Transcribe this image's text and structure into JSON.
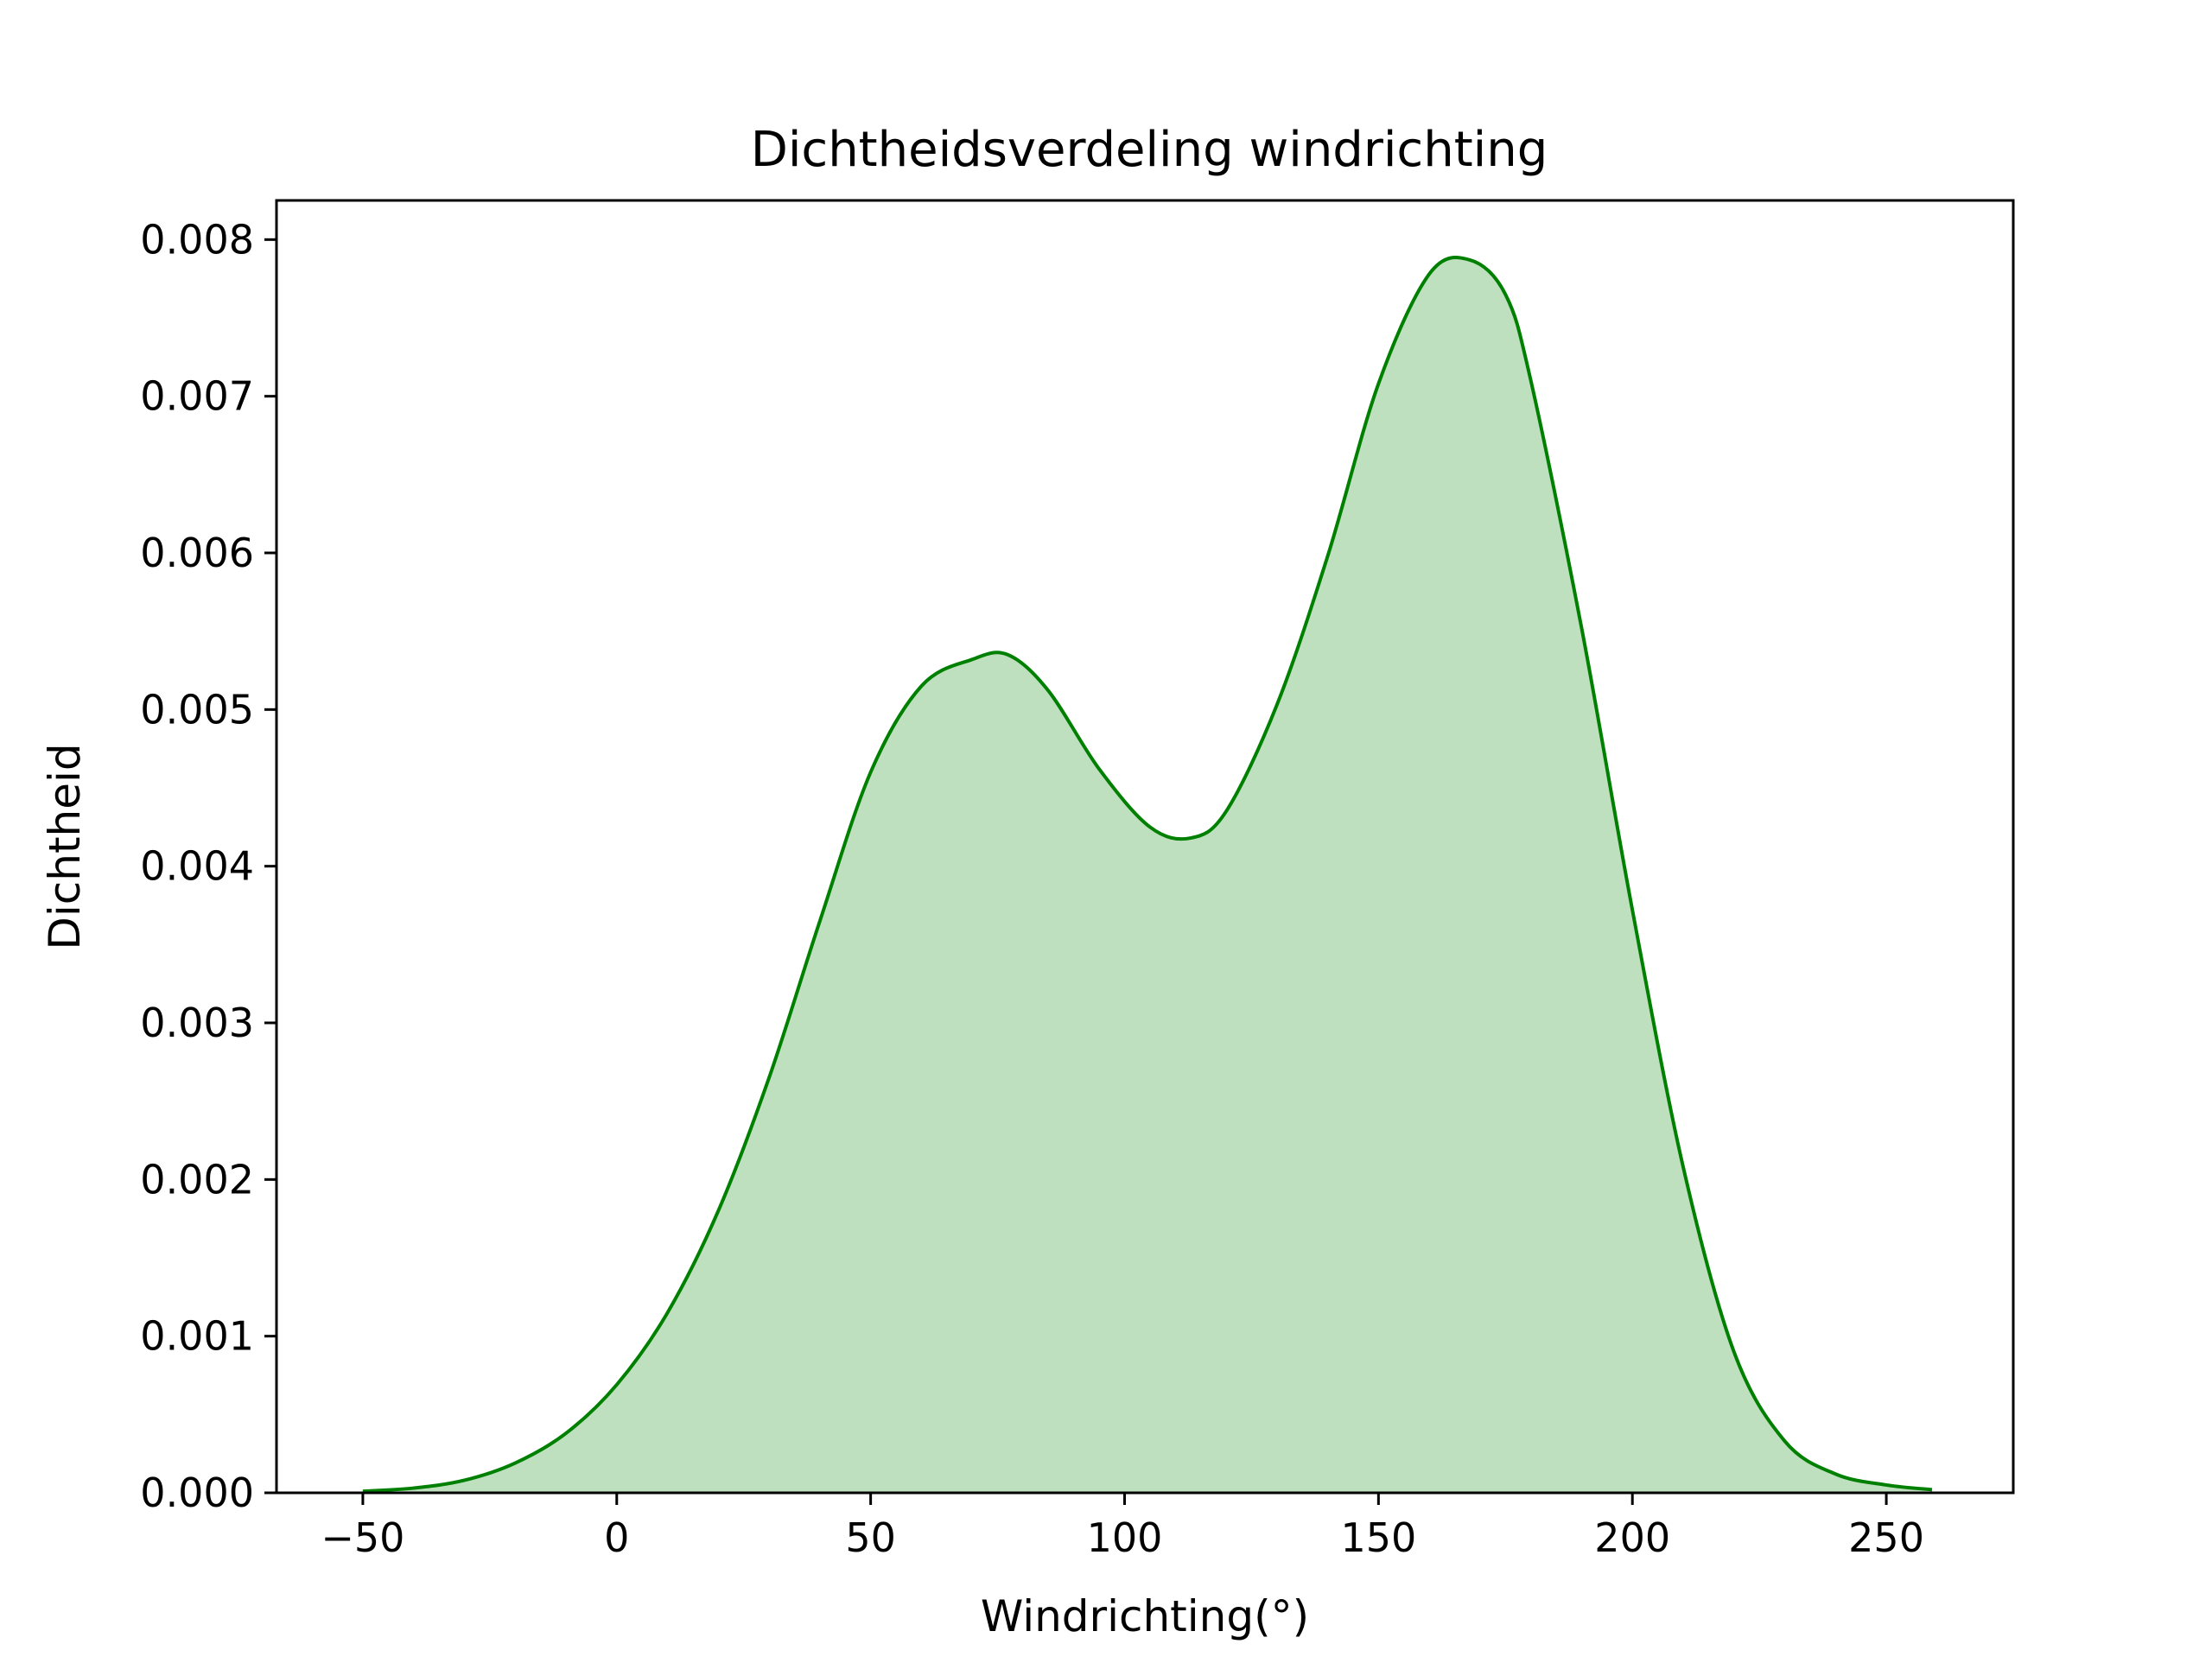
{
  "chart_data": {
    "type": "area",
    "title": "Dichtheidsverdeling windrichting",
    "xlabel": "Windrichting(°)",
    "ylabel": "Dichtheid",
    "xlim": [
      -67,
      275
    ],
    "ylim": [
      0,
      0.00825
    ],
    "xticks": [
      -50,
      0,
      50,
      100,
      150,
      200,
      250
    ],
    "xtick_labels": [
      "−50",
      "0",
      "50",
      "100",
      "150",
      "200",
      "250"
    ],
    "yticks": [
      0,
      0.001,
      0.002,
      0.003,
      0.004,
      0.005,
      0.006,
      0.007,
      0.008
    ],
    "ytick_labels": [
      "0.000",
      "0.001",
      "0.002",
      "0.003",
      "0.004",
      "0.005",
      "0.006",
      "0.007",
      "0.008"
    ],
    "grid": false,
    "legend": "none",
    "line_color": "#008000",
    "fill_color": "#bfe0bf",
    "series": [
      {
        "x": [
          -50,
          -40,
          -30,
          -20,
          -10,
          0,
          10,
          20,
          30,
          40,
          50,
          60,
          70,
          77,
          85,
          95,
          105,
          113,
          120,
          130,
          140,
          150,
          160,
          168,
          175,
          180,
          190,
          200,
          210,
          220,
          230,
          240,
          250,
          259
        ],
        "y": [
          1e-05,
          3e-05,
          8e-05,
          0.00019,
          0.00038,
          0.00069,
          0.00115,
          0.0018,
          0.00265,
          0.00365,
          0.0046,
          0.00515,
          0.00532,
          0.00535,
          0.00512,
          0.00462,
          0.00425,
          0.00418,
          0.00435,
          0.00503,
          0.00598,
          0.00708,
          0.00778,
          0.00787,
          0.00765,
          0.0071,
          0.00552,
          0.00372,
          0.00208,
          0.0009,
          0.00033,
          0.00012,
          5e-05,
          2e-05
        ]
      }
    ]
  }
}
